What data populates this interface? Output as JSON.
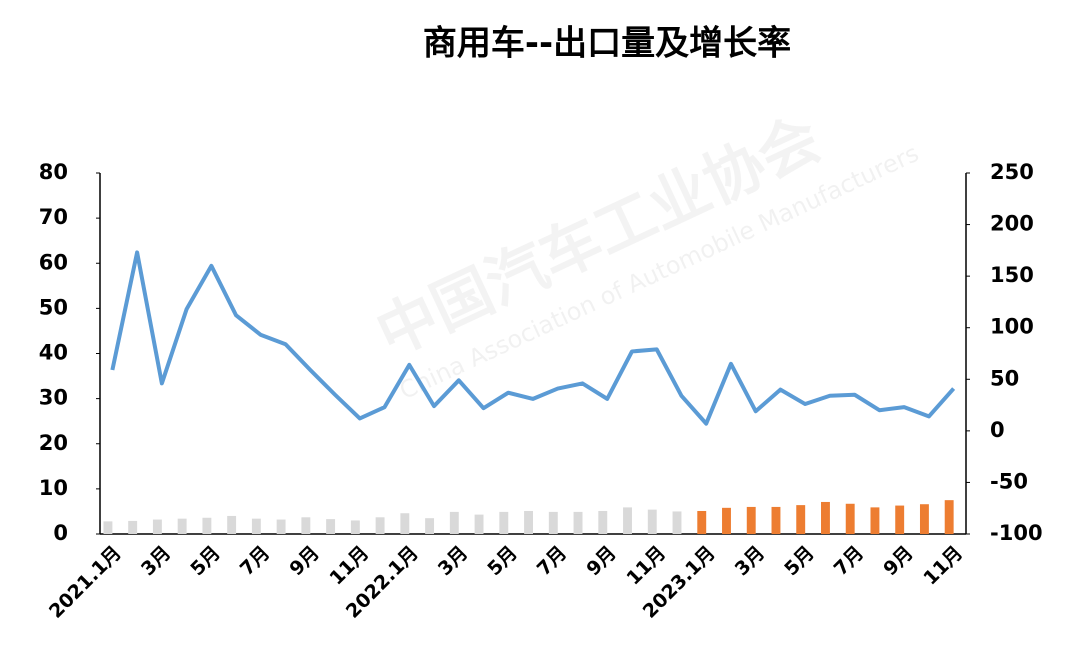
{
  "chart_data": {
    "type": "combo",
    "title": "商用车--出口量及增长率",
    "watermark": [
      "中国汽车工业协会",
      "China Association of Automobile Manufacturers"
    ],
    "categories": [
      "2021.1月",
      null,
      "3月",
      null,
      "5月",
      null,
      "7月",
      null,
      "9月",
      null,
      "11月",
      null,
      "2022.1月",
      null,
      "3月",
      null,
      "5月",
      null,
      "7月",
      null,
      "9月",
      null,
      "11月",
      null,
      "2023.1月",
      null,
      "3月",
      null,
      "5月",
      null,
      "7月",
      null,
      "9月",
      null,
      "11月"
    ],
    "series": [
      {
        "type": "bar",
        "axis": "y",
        "colors": [
          "#d9d9d9",
          "#d9d9d9",
          "#d9d9d9",
          "#d9d9d9",
          "#d9d9d9",
          "#d9d9d9",
          "#d9d9d9",
          "#d9d9d9",
          "#d9d9d9",
          "#d9d9d9",
          "#d9d9d9",
          "#d9d9d9",
          "#d9d9d9",
          "#d9d9d9",
          "#d9d9d9",
          "#d9d9d9",
          "#d9d9d9",
          "#d9d9d9",
          "#d9d9d9",
          "#d9d9d9",
          "#d9d9d9",
          "#d9d9d9",
          "#d9d9d9",
          "#d9d9d9",
          "#ed7d31",
          "#ed7d31",
          "#ed7d31",
          "#ed7d31",
          "#ed7d31",
          "#ed7d31",
          "#ed7d31",
          "#ed7d31",
          "#ed7d31",
          "#ed7d31",
          "#ed7d31"
        ],
        "values": [
          2.8,
          2.9,
          3.2,
          3.4,
          3.6,
          4.0,
          3.4,
          3.2,
          3.7,
          3.3,
          3.0,
          3.7,
          4.6,
          3.5,
          4.9,
          4.3,
          4.9,
          5.1,
          4.9,
          4.9,
          5.1,
          5.9,
          5.4,
          5.0,
          5.1,
          5.8,
          6.0,
          6.0,
          6.4,
          7.1,
          6.7,
          5.9,
          6.3,
          6.6,
          7.5
        ]
      },
      {
        "type": "line",
        "axis": "y2",
        "color": "#5b9bd5",
        "values": [
          59,
          173,
          46,
          118,
          160,
          112,
          93,
          84,
          59,
          35,
          12,
          23,
          64,
          24,
          49,
          22,
          37,
          31,
          41,
          46,
          31,
          77,
          79,
          34,
          7,
          65,
          19,
          40,
          26,
          34,
          35,
          20,
          23,
          14,
          41
        ]
      }
    ],
    "ylim": [
      0,
      80
    ],
    "yticks": [
      0,
      10,
      20,
      30,
      40,
      50,
      60,
      70,
      80
    ],
    "y2lim": [
      -100,
      250
    ],
    "y2ticks": [
      -100,
      -50,
      0,
      50,
      100,
      150,
      200,
      250
    ],
    "grid": false
  }
}
